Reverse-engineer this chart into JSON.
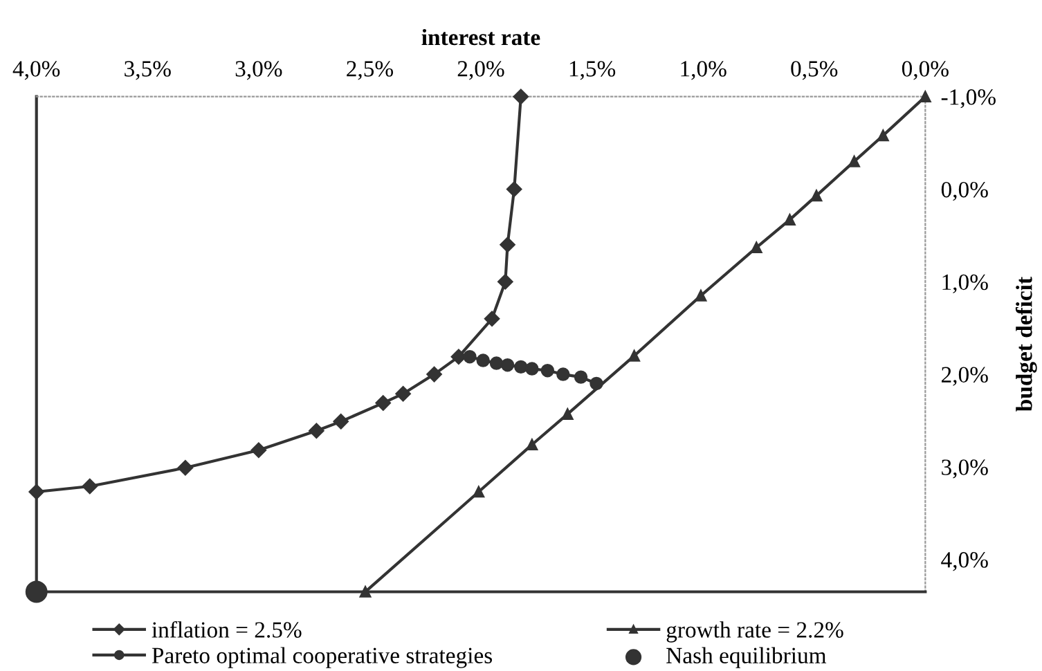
{
  "chart_data": {
    "type": "line",
    "xlabel": "interest rate",
    "ylabel": "budget deficit",
    "xlim": [
      4.0,
      0.0
    ],
    "ylim": [
      4.35,
      -1.0
    ],
    "xticks": [
      {
        "value": 4.0,
        "label": "4,0%"
      },
      {
        "value": 3.5,
        "label": "3,5%"
      },
      {
        "value": 3.0,
        "label": "3,0%"
      },
      {
        "value": 2.5,
        "label": "2,5%"
      },
      {
        "value": 2.0,
        "label": "2,0%"
      },
      {
        "value": 1.5,
        "label": "1,5%"
      },
      {
        "value": 1.0,
        "label": "1,0%"
      },
      {
        "value": 0.5,
        "label": "0,5%"
      },
      {
        "value": 0.0,
        "label": "0,0%"
      }
    ],
    "yticks": [
      {
        "value": -1.0,
        "label": "-1,0%"
      },
      {
        "value": 0.0,
        "label": "0,0%"
      },
      {
        "value": 1.0,
        "label": "1,0%"
      },
      {
        "value": 2.0,
        "label": "2,0%"
      },
      {
        "value": 3.0,
        "label": "3,0%"
      },
      {
        "value": 4.0,
        "label": "4,0%"
      }
    ],
    "grid": false,
    "legend": "bottom",
    "series": [
      {
        "name": "inflation = 2.5%",
        "color": "#333333",
        "marker": "diamond",
        "x": [
          4.0,
          3.76,
          3.33,
          3.0,
          2.74,
          2.63,
          2.44,
          2.35,
          2.21,
          2.1,
          1.95,
          1.89,
          1.88,
          1.85,
          1.82
        ],
        "values": [
          3.27,
          3.21,
          3.01,
          2.82,
          2.61,
          2.51,
          2.31,
          2.21,
          2.0,
          1.81,
          1.4,
          1.0,
          0.6,
          0.0,
          -1.0
        ]
      },
      {
        "name": "Pareto optimal cooperative strategies",
        "color": "#333333",
        "marker": "circle",
        "x": [
          2.05,
          1.99,
          1.93,
          1.88,
          1.82,
          1.77,
          1.7,
          1.63,
          1.55,
          1.48
        ],
        "values": [
          1.81,
          1.85,
          1.88,
          1.9,
          1.92,
          1.94,
          1.96,
          2.0,
          2.03,
          2.1
        ]
      },
      {
        "name": "growth rate = 2.2%",
        "color": "#333333",
        "marker": "triangle",
        "x": [
          0.0,
          0.19,
          0.32,
          0.49,
          0.61,
          0.76,
          1.01,
          1.31,
          1.61,
          1.77,
          2.01,
          2.52
        ],
        "values": [
          -1.0,
          -0.58,
          -0.3,
          0.07,
          0.33,
          0.63,
          1.15,
          1.8,
          2.43,
          2.76,
          3.27,
          4.35
        ]
      },
      {
        "name": "Nash equilibrium",
        "type": "scatter",
        "color": "#333333",
        "marker": "circle",
        "x": [
          4.0
        ],
        "values": [
          4.35
        ]
      }
    ]
  }
}
